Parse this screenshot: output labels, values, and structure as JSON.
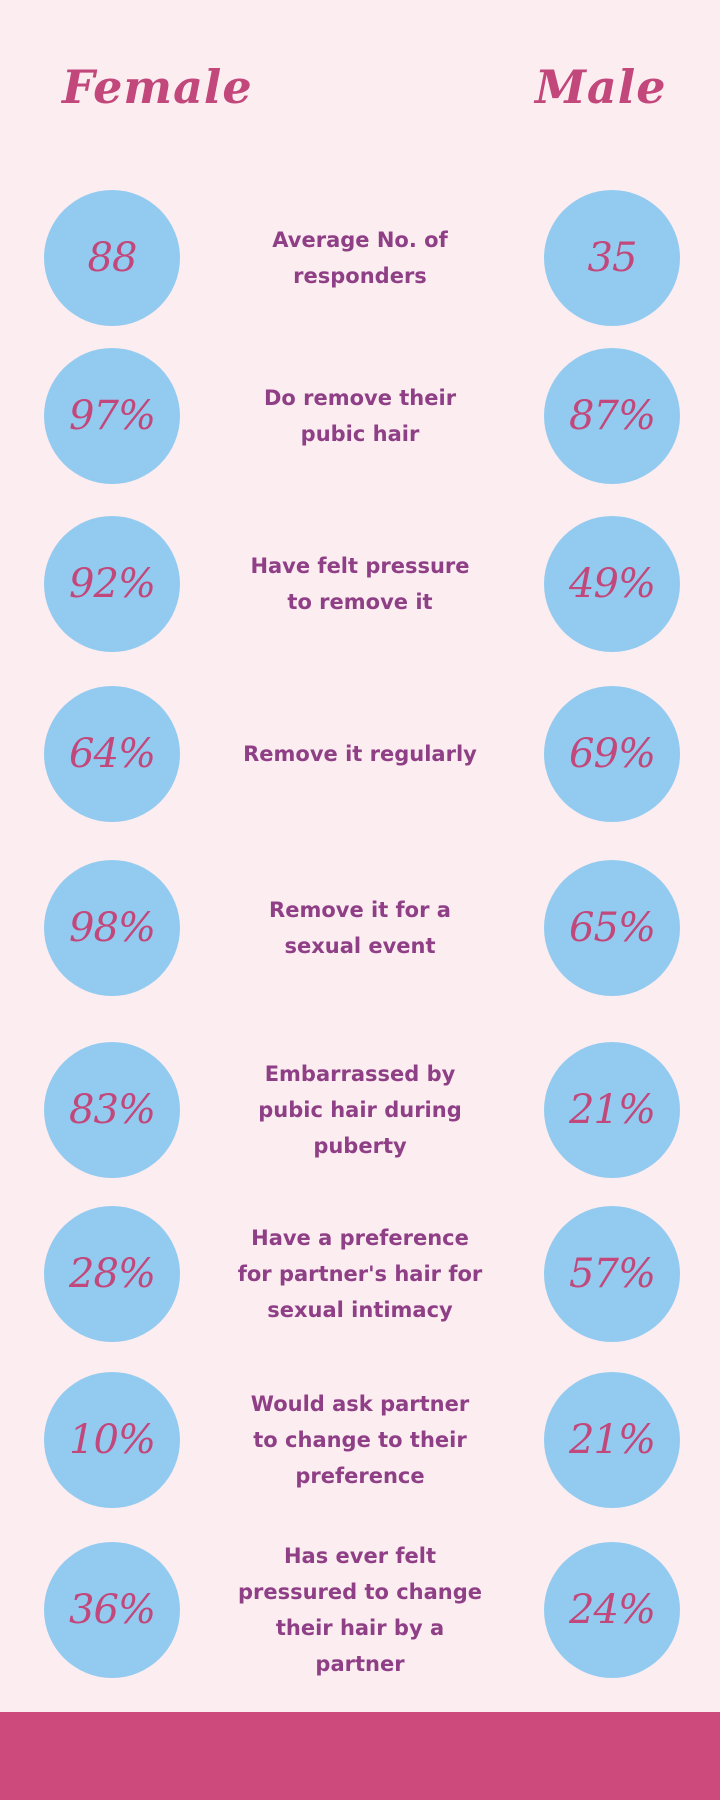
{
  "header": {
    "female": "Female",
    "male": "Male"
  },
  "rows": [
    {
      "female": "88",
      "label": "Average No. of responders",
      "male": "35"
    },
    {
      "female": "97%",
      "label": "Do remove their pubic hair",
      "male": "87%"
    },
    {
      "female": "92%",
      "label": "Have felt pressure to remove it",
      "male": "49%"
    },
    {
      "female": "64%",
      "label": "Remove it regularly",
      "male": "69%"
    },
    {
      "female": "98%",
      "label": "Remove it for a sexual event",
      "male": "65%"
    },
    {
      "female": "83%",
      "label": "Embarrassed by pubic hair during puberty",
      "male": "21%"
    },
    {
      "female": "28%",
      "label": "Have a preference for partner's hair for sexual intimacy",
      "male": "57%"
    },
    {
      "female": "10%",
      "label": "Would ask partner to change to their preference",
      "male": "21%"
    },
    {
      "female": "36%",
      "label": "Has ever felt pressured to change their hair by a partner",
      "male": "24%"
    }
  ],
  "colors": {
    "background": "#fcedf0",
    "circle": "#93cbf0",
    "accent": "#c2477b",
    "label": "#8f3f86",
    "footer": "#cd4a7c"
  }
}
